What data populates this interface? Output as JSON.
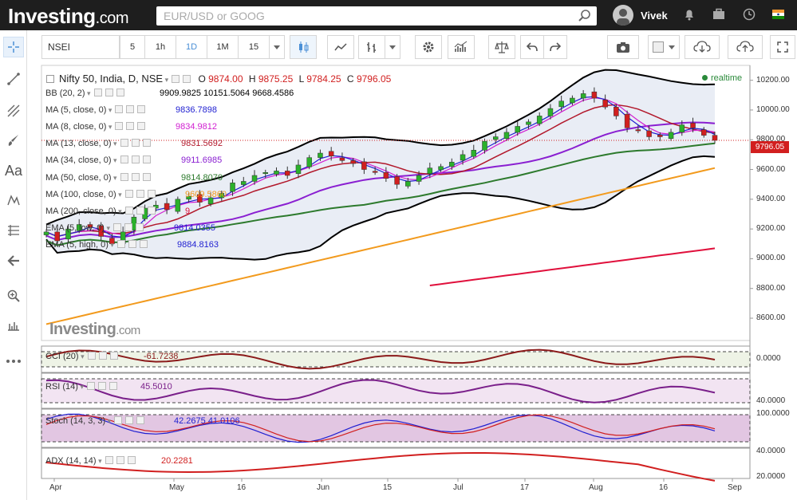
{
  "header": {
    "logo_text": "Investing",
    "logo_suffix": ".com",
    "search_placeholder": "EUR/USD or GOOG",
    "username": "Vivek"
  },
  "toolbar": {
    "symbol": "NSEI",
    "intervals": [
      "5",
      "1h",
      "1D",
      "1M",
      "15"
    ],
    "active_interval": "1D"
  },
  "chart_title": {
    "name": "Nifty 50, India, D, NSE",
    "o_label": "O",
    "o_value": "9874.00",
    "h_label": "H",
    "h_value": "9875.25",
    "l_label": "L",
    "l_value": "9784.25",
    "c_label": "C",
    "c_value": "9796.05",
    "realtime": "realtime"
  },
  "indicators": [
    {
      "label": "BB (20, 2)",
      "value": "9909.9825  10151.5064  9668.4586",
      "color": "#000000"
    },
    {
      "label": "MA (5, close, 0)",
      "value": "9836.7898",
      "color": "#1f1fd1"
    },
    {
      "label": "MA (8, close, 0)",
      "value": "9834.9812",
      "color": "#d11fd1"
    },
    {
      "label": "MA (13, close, 0)",
      "value": "9831.5692",
      "color": "#b2182b"
    },
    {
      "label": "MA (34, close, 0)",
      "value": "9911.6985",
      "color": "#8a1fd1"
    },
    {
      "label": "MA (50, close, 0)",
      "value": "9814.8070",
      "color": "#2d7a2d"
    },
    {
      "label": "MA (100, close, 0)",
      "value": "9609.5860",
      "color": "#f29a1d"
    },
    {
      "label": "MA (200, close, 0)",
      "value": "9",
      "color": "#e0103c"
    },
    {
      "label": "EMA (5, low, 0)",
      "value": "9814.0355",
      "color": "#1f1fd1"
    },
    {
      "label": "EMA (5, high, 0)",
      "value": "9884.8163",
      "color": "#1f1fd1"
    }
  ],
  "oscillators": [
    {
      "label": "CCI (20)",
      "value": "-61.7238",
      "color": "#8b1a1a"
    },
    {
      "label": "RSI (14)",
      "value": "45.5010",
      "color": "#7a1f8a"
    },
    {
      "label": "Stoch (14, 3, 3)",
      "value": "42.2675  41.0106",
      "color": "#1f1fd1"
    },
    {
      "label": "ADX (14, 14)",
      "value": "20.2281",
      "color": "#d11f1f"
    }
  ],
  "price_axis": [
    "10200.00",
    "10000.00",
    "9800.00",
    "9600.00",
    "9400.00",
    "9200.00",
    "9000.00",
    "8800.00",
    "8600.00"
  ],
  "current_price": "9796.05",
  "osc_axis": {
    "cci": "0.0000",
    "rsi": "40.0000",
    "stoch_top": "100.0000",
    "stoch_bottom": "40.0000",
    "adx": "20.0000"
  },
  "time_axis": [
    "Apr",
    "May",
    "16",
    "Jun",
    "15",
    "Jul",
    "17",
    "Aug",
    "16",
    "Sep"
  ],
  "watermark_text": "Investing",
  "watermark_suffix": ".com",
  "chart_data": {
    "type": "candlestick",
    "title": "Nifty 50, India, D, NSE",
    "ylim": [
      8450,
      10300
    ],
    "x_labels": [
      "Apr",
      "May",
      "16",
      "Jun",
      "15",
      "Jul",
      "17",
      "Aug",
      "16",
      "Sep"
    ],
    "close_approx": [
      9180,
      9120,
      9200,
      9230,
      9210,
      9150,
      9100,
      9180,
      9280,
      9340,
      9360,
      9330,
      9400,
      9420,
      9380,
      9410,
      9440,
      9510,
      9520,
      9560,
      9580,
      9590,
      9560,
      9630,
      9680,
      9710,
      9690,
      9660,
      9640,
      9600,
      9580,
      9540,
      9500,
      9520,
      9560,
      9610,
      9620,
      9650,
      9700,
      9730,
      9790,
      9820,
      9850,
      9890,
      9920,
      9960,
      10010,
      10060,
      10080,
      10110,
      10080,
      10020,
      9960,
      9880,
      9860,
      9820,
      9820,
      9850,
      9900,
      9880,
      9830,
      9796
    ],
    "last": 9796.05
  }
}
